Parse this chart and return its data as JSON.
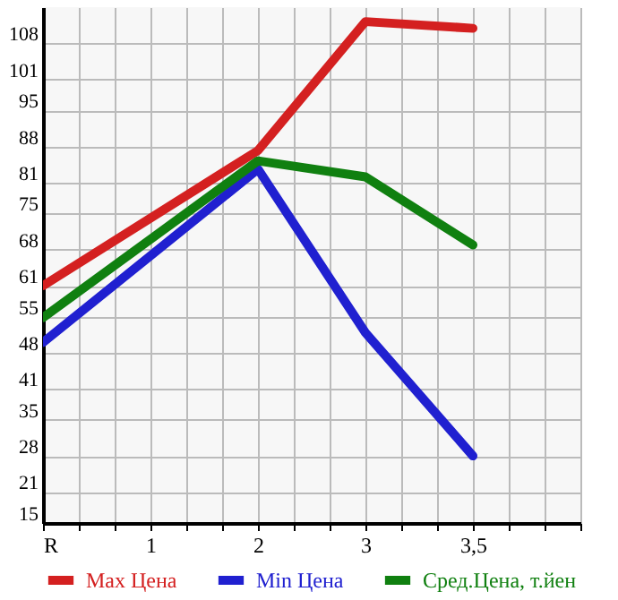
{
  "chart_data": {
    "type": "line",
    "categories": [
      "R",
      "1",
      "2",
      "3",
      "3,5",
      null
    ],
    "series": [
      {
        "name": "Max Цена",
        "color": "#d42020",
        "x": [
          "R",
          "2",
          "3",
          "3,5"
        ],
        "values": [
          61,
          87.2,
          112.2,
          110.9
        ]
      },
      {
        "name": "Min Цена",
        "color": "#2020d0",
        "x": [
          "R",
          "2",
          "3",
          "3,5"
        ],
        "values": [
          50,
          83.6,
          51.9,
          28
        ]
      },
      {
        "name": "Сред.Цена, т.йен",
        "color": "#108010",
        "x": [
          "R",
          "2",
          "3",
          "3,5"
        ],
        "values": [
          54.8,
          85.2,
          82.1,
          68.9
        ]
      }
    ],
    "ylim": [
      15,
      115
    ],
    "yticks": [
      15,
      21,
      28,
      35,
      41,
      48,
      55,
      61,
      68,
      75,
      81,
      88,
      95,
      101,
      108
    ],
    "grid": true,
    "legend": "bottom",
    "line_style": "solid"
  }
}
